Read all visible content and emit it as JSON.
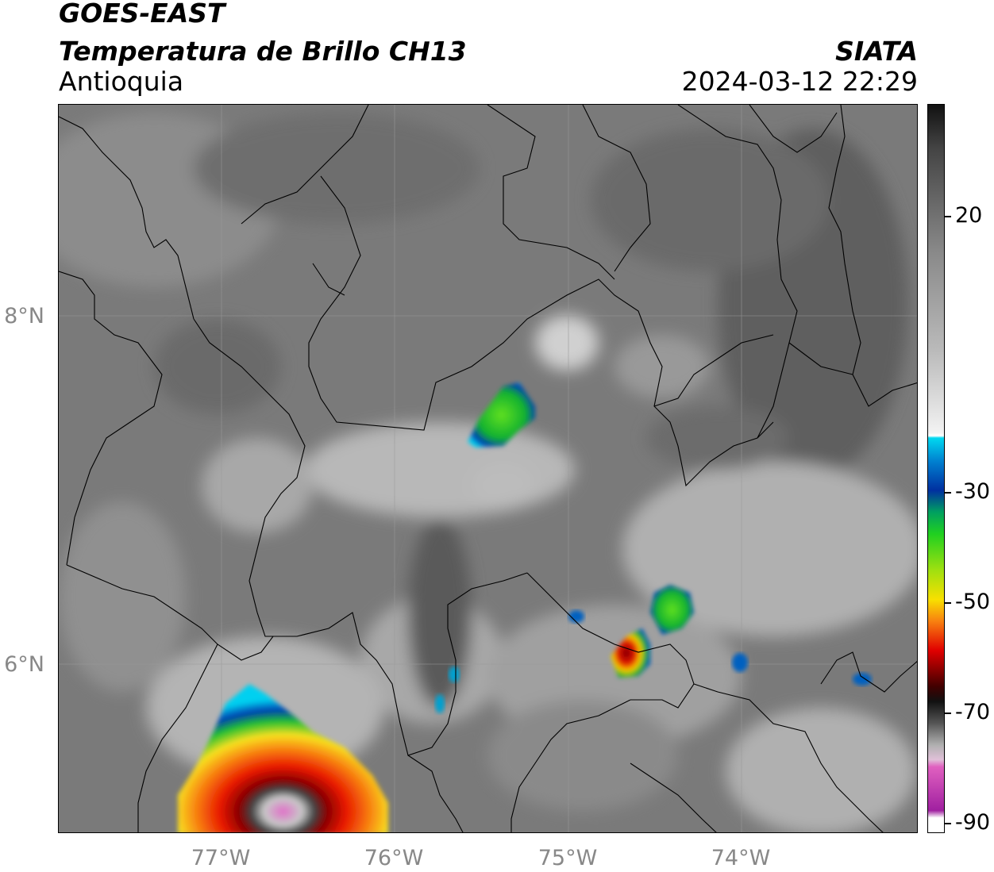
{
  "header": {
    "satellite": "GOES-EAST",
    "product": "Temperatura de Brillo CH13",
    "region": "Antioquia",
    "organization": "SIATA",
    "datetime": "2024-03-12 22:29"
  },
  "map": {
    "lat_ticks": [
      "8°N",
      "6°N"
    ],
    "lon_ticks": [
      "77°W",
      "76°W",
      "75°W",
      "74°W"
    ]
  },
  "colorbar": {
    "units_note": "",
    "tick_labels": [
      "20",
      "-30",
      "-50",
      "-70",
      "-90"
    ],
    "colors": {
      "warm_gray_top": "#111111",
      "cyan": "#00d8f0",
      "blue": "#0030a0",
      "green": "#10c020",
      "yellow": "#f8e000",
      "red": "#e00000",
      "magenta": "#e060c0"
    }
  }
}
